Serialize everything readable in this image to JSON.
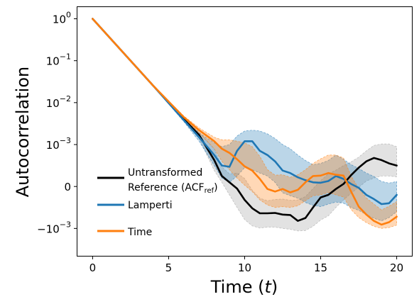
{
  "chart_data": {
    "type": "line",
    "title": "",
    "xlabel": "Time (t)",
    "xlabel_parts": {
      "prefix": "Time (",
      "var": "t",
      "suffix": ")"
    },
    "ylabel": "Autocorrelation",
    "xlim": [
      -1,
      21
    ],
    "y_scale": "symlog",
    "y_linthresh": 0.001,
    "ylim": [
      -0.0045,
      1.9
    ],
    "x_ticks": [
      0,
      5,
      10,
      15,
      20
    ],
    "x_tick_labels": [
      "0",
      "5",
      "10",
      "15",
      "20"
    ],
    "y_ticks": [
      {
        "value": 1,
        "base": "10",
        "exp": "0"
      },
      {
        "value": 0.1,
        "base": "10",
        "exp": "−1"
      },
      {
        "value": 0.01,
        "base": "10",
        "exp": "−2"
      },
      {
        "value": 0.001,
        "base": "10",
        "exp": "−3"
      },
      {
        "value": 0,
        "base": "0",
        "exp": ""
      },
      {
        "value": -0.001,
        "base": "−10",
        "exp": "−3"
      }
    ],
    "grid": false,
    "legend_position": "lower-left",
    "legend": [
      {
        "series": "reference",
        "line1": "Untransformed",
        "line2_prefix": "Reference (ACF",
        "line2_sub": "ref",
        "line2_suffix": ")"
      },
      {
        "series": "lamperti",
        "label": "Lamperti"
      },
      {
        "series": "time",
        "label": "Time"
      }
    ],
    "colors": {
      "reference": "#000000",
      "lamperti": "#1f77b4",
      "time": "#ff7f0e",
      "reference_band": "#a0a0a0",
      "lamperti_band": "#1f77b4",
      "time_band": "#ff7f0e"
    },
    "series": [
      {
        "id": "reference",
        "color": "#000000",
        "x": [
          0,
          2,
          4,
          6,
          7,
          8,
          8.5,
          9,
          9.5,
          10,
          10.5,
          11,
          11.5,
          12,
          12.5,
          13,
          13.5,
          14,
          14.5,
          15,
          15.5,
          16,
          16.5,
          17,
          17.5,
          18,
          18.5,
          19,
          19.5,
          20
        ],
        "y": [
          1,
          0.158,
          0.0251,
          0.004,
          0.0017,
          0.00063,
          0.00025,
          0.0001,
          -5e-05,
          -0.00032,
          -0.00052,
          -0.00064,
          -0.00064,
          -0.00063,
          -0.00067,
          -0.00068,
          -0.00082,
          -0.00075,
          -0.0005,
          -0.00026,
          -0.0002,
          -6e-05,
          6e-05,
          0.00027,
          0.00045,
          0.0006,
          0.00068,
          0.00063,
          0.00055,
          0.0005
        ],
        "lower": [
          1,
          0.158,
          0.0251,
          0.0038,
          0.0014,
          0.00038,
          0.0001,
          -0.0002,
          -0.0005,
          -0.00079,
          -0.00094,
          -0.00099,
          -0.00097,
          -0.00097,
          -0.001,
          -0.00105,
          -0.00115,
          -0.00112,
          -0.00095,
          -0.0008,
          -0.0007,
          -0.0005,
          -0.00032,
          -0.00016,
          -2e-05,
          0.00013,
          0.0002,
          0.00025,
          0.00025,
          0.00023
        ],
        "upper": [
          1,
          0.158,
          0.0251,
          0.0042,
          0.002,
          0.00089,
          0.00047,
          0.0003,
          0.00032,
          0.00019,
          -9e-05,
          -0.00028,
          -0.00034,
          -0.00031,
          -0.0003,
          -0.00033,
          -0.00032,
          -0.00024,
          -5e-05,
          0.00014,
          0.0003,
          0.00039,
          0.0005,
          0.00059,
          0.0007,
          0.00085,
          0.00098,
          0.00103,
          0.00103,
          0.00095
        ]
      },
      {
        "id": "lamperti",
        "color": "#1f77b4",
        "x": [
          0,
          2,
          4,
          6,
          7,
          8,
          8.5,
          9,
          9.5,
          10,
          10.5,
          11,
          11.5,
          12,
          12.5,
          13,
          13.5,
          14,
          14.5,
          15,
          15.5,
          16,
          16.5,
          17,
          17.5,
          18,
          18.5,
          19,
          19.5,
          20
        ],
        "y": [
          1,
          0.158,
          0.0251,
          0.0038,
          0.0015,
          0.00075,
          0.0005,
          0.00047,
          0.00085,
          0.0012,
          0.0012,
          0.00085,
          0.00075,
          0.0006,
          0.00038,
          0.00032,
          0.00022,
          0.00015,
          0.0001,
          9e-05,
          0.00013,
          0.00025,
          0.00018,
          6e-05,
          -3e-05,
          -0.0002,
          -0.0003,
          -0.00042,
          -0.0004,
          -0.0002
        ],
        "lower": [
          1,
          0.158,
          0.0251,
          0.0035,
          0.0012,
          0.0005,
          0.0002,
          0.0001,
          0.00025,
          0.00045,
          0.0004,
          0.00032,
          0.00025,
          0.0001,
          -0.00015,
          -0.00022,
          -0.00028,
          -0.00038,
          -0.00045,
          -0.00048,
          -0.00042,
          -0.00037,
          -0.0004,
          -0.0005,
          -0.00057,
          -0.00067,
          -0.00076,
          -0.00082,
          -0.00074,
          -0.0006
        ],
        "upper": [
          1,
          0.158,
          0.0251,
          0.0042,
          0.0019,
          0.0011,
          0.00095,
          0.001,
          0.0016,
          0.0021,
          0.0022,
          0.0021,
          0.0018,
          0.0014,
          0.001,
          0.0009,
          0.00075,
          0.00062,
          0.00052,
          0.00055,
          0.00062,
          0.00075,
          0.00065,
          0.00052,
          0.00043,
          0.00032,
          0.00024,
          0.00012,
          8e-05,
          0.00012
        ]
      },
      {
        "id": "time",
        "color": "#ff7f0e",
        "x": [
          0,
          2,
          4,
          6,
          7,
          8,
          8.5,
          9,
          9.5,
          10,
          10.5,
          11,
          11.5,
          12,
          12.5,
          13,
          13.5,
          14,
          14.5,
          15,
          15.5,
          16,
          16.5,
          17,
          17.5,
          18,
          18.5,
          19,
          19.5,
          20
        ],
        "y": [
          1,
          0.158,
          0.0251,
          0.0045,
          0.0022,
          0.0012,
          0.0009,
          0.0008,
          0.00065,
          0.00048,
          0.00038,
          0.00018,
          -6e-05,
          -0.00012,
          -6e-05,
          -0.00014,
          -8e-05,
          0.0001,
          0.00025,
          0.00026,
          0.00032,
          0.00028,
          0.00026,
          -0.00012,
          -0.00048,
          -0.00067,
          -0.00082,
          -0.00091,
          -0.00085,
          -0.00072
        ],
        "lower": [
          1,
          0.158,
          0.0251,
          0.0042,
          0.0019,
          0.0009,
          0.0006,
          0.0004,
          0.0002,
          3e-05,
          -0.00012,
          -0.00032,
          -0.00044,
          -0.0005,
          -0.00048,
          -0.0005,
          -0.00046,
          -0.00034,
          -0.00022,
          -0.0002,
          -0.00014,
          -0.0002,
          -0.00025,
          -0.00055,
          -0.00074,
          -0.00086,
          -0.00095,
          -0.001,
          -0.00098,
          -0.00092
        ],
        "upper": [
          1,
          0.158,
          0.0251,
          0.0048,
          0.0025,
          0.0015,
          0.0013,
          0.0013,
          0.0012,
          0.0011,
          0.00095,
          0.00072,
          0.0004,
          0.00027,
          0.00028,
          0.00022,
          0.00028,
          0.0004,
          0.00055,
          0.00066,
          0.00075,
          0.00075,
          0.00068,
          0.00025,
          -5e-05,
          -0.00027,
          -0.00042,
          -0.00056,
          -0.00047,
          -0.00036
        ]
      }
    ]
  }
}
